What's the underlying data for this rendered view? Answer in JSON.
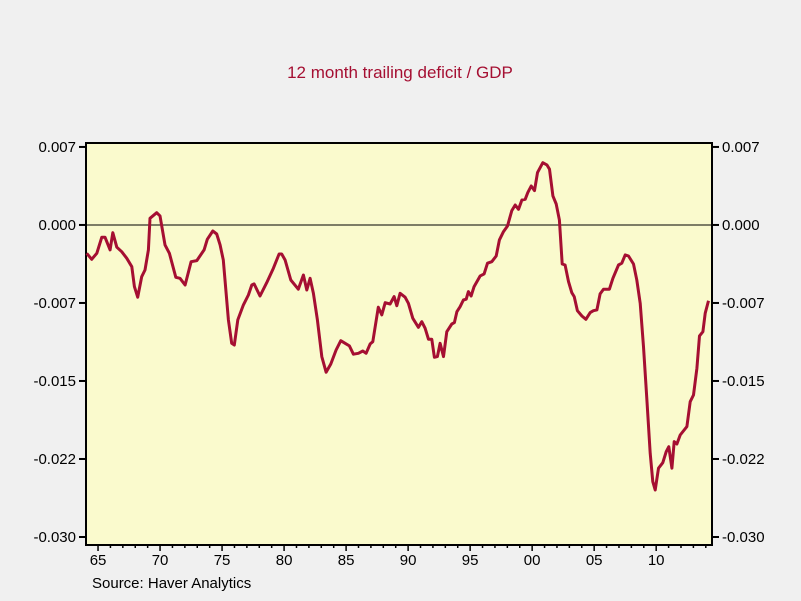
{
  "chart_data": {
    "type": "line",
    "title": "12 month trailing deficit / GDP",
    "source": "Source: Haver Analytics",
    "xlim": [
      1964.03,
      2014.5
    ],
    "ylim": [
      -0.03077,
      0.00788
    ],
    "grid": false,
    "zero_line": true,
    "colors": {
      "line": "#a50f32",
      "title": "#a50f32",
      "plot_bg": "#fafacd",
      "page_bg": "#f0f0f0"
    },
    "y_ticks": [
      {
        "value": 0.0075,
        "label": "0.007"
      },
      {
        "value": 0,
        "label": "0.000"
      },
      {
        "value": -0.0075,
        "label": "-0.007"
      },
      {
        "value": -0.015,
        "label": "-0.015"
      },
      {
        "value": -0.0225,
        "label": "-0.022"
      },
      {
        "value": -0.03,
        "label": "-0.030"
      }
    ],
    "x_ticks": [
      {
        "value": 1965,
        "label": "65"
      },
      {
        "value": 1970,
        "label": "70"
      },
      {
        "value": 1975,
        "label": "75"
      },
      {
        "value": 1980,
        "label": "80"
      },
      {
        "value": 1985,
        "label": "85"
      },
      {
        "value": 1990,
        "label": "90"
      },
      {
        "value": 1995,
        "label": "95"
      },
      {
        "value": 2000,
        "label": "00"
      },
      {
        "value": 2005,
        "label": "05"
      },
      {
        "value": 2010,
        "label": "10"
      }
    ],
    "series": [
      {
        "x": [
          1964.09,
          1964.49,
          1964.9,
          1965.3,
          1965.56,
          1965.97,
          1966.19,
          1966.51,
          1966.91,
          1967.31,
          1967.72,
          1967.93,
          1968.2,
          1968.52,
          1968.79,
          1969.06,
          1969.19,
          1969.73,
          1970.0,
          1970.4,
          1970.75,
          1971.27,
          1971.61,
          1972.02,
          1972.5,
          1972.96,
          1973.55,
          1973.81,
          1974.25,
          1974.57,
          1974.84,
          1975.1,
          1975.51,
          1975.78,
          1975.99,
          1976.27,
          1976.72,
          1977.12,
          1977.4,
          1977.58,
          1978.06,
          1978.6,
          1979.14,
          1979.6,
          1979.81,
          1980.08,
          1980.54,
          1981.15,
          1981.56,
          1981.83,
          1982.1,
          1982.36,
          1982.69,
          1983.04,
          1983.39,
          1983.77,
          1984.19,
          1984.57,
          1984.92,
          1985.27,
          1985.59,
          1985.99,
          1986.35,
          1986.61,
          1986.94,
          1987.15,
          1987.6,
          1987.88,
          1988.15,
          1988.55,
          1988.87,
          1989.09,
          1989.35,
          1989.76,
          1990.02,
          1990.38,
          1990.83,
          1991.1,
          1991.37,
          1991.64,
          1991.91,
          1992.12,
          1992.36,
          1992.58,
          1992.85,
          1993.12,
          1993.52,
          1993.73,
          1993.93,
          1994.19,
          1994.46,
          1994.68,
          1994.86,
          1995.08,
          1995.32,
          1995.81,
          1996.13,
          1996.4,
          1996.75,
          1997.1,
          1997.36,
          1997.69,
          1998.01,
          1998.36,
          1998.63,
          1998.9,
          1999.17,
          1999.44,
          1999.65,
          1999.92,
          2000.19,
          2000.43,
          2000.86,
          2001.19,
          2001.4,
          2001.67,
          2001.94,
          2002.2,
          2002.42,
          2002.66,
          2002.93,
          2003.2,
          2003.39,
          2003.65,
          2004.01,
          2004.33,
          2004.68,
          2004.94,
          2005.22,
          2005.48,
          2005.75,
          2006.23,
          2006.51,
          2006.96,
          2007.23,
          2007.5,
          2007.77,
          2008.17,
          2008.44,
          2008.71,
          2008.98,
          2009.25,
          2009.52,
          2009.73,
          2009.92,
          2010.19,
          2010.53,
          2010.81,
          2011.02,
          2011.27,
          2011.45,
          2011.67,
          2011.94,
          2012.48,
          2012.74,
          2013.01,
          2013.28,
          2013.49,
          2013.77,
          2013.95,
          2014.22
        ],
        "y": [
          -0.00272,
          -0.0033,
          -0.00272,
          -0.00118,
          -0.00118,
          -0.0024,
          -0.00074,
          -0.00214,
          -0.00257,
          -0.0032,
          -0.00401,
          -0.00593,
          -0.00695,
          -0.00497,
          -0.00433,
          -0.0024,
          0.00064,
          0.00118,
          0.00087,
          -0.00192,
          -0.00272,
          -0.00503,
          -0.00513,
          -0.00577,
          -0.00353,
          -0.00343,
          -0.0024,
          -0.00138,
          -0.00058,
          -0.00087,
          -0.00192,
          -0.00337,
          -0.00913,
          -0.01138,
          -0.01154,
          -0.00913,
          -0.00769,
          -0.00673,
          -0.00577,
          -0.00567,
          -0.00683,
          -0.00555,
          -0.00416,
          -0.00279,
          -0.00279,
          -0.00337,
          -0.00529,
          -0.00618,
          -0.00481,
          -0.00625,
          -0.00513,
          -0.00657,
          -0.00913,
          -0.01266,
          -0.01416,
          -0.01337,
          -0.01202,
          -0.01113,
          -0.01138,
          -0.01163,
          -0.01243,
          -0.01234,
          -0.01212,
          -0.01234,
          -0.01144,
          -0.01122,
          -0.00791,
          -0.00865,
          -0.00747,
          -0.0076,
          -0.00689,
          -0.00776,
          -0.00657,
          -0.00695,
          -0.00753,
          -0.00897,
          -0.00984,
          -0.0093,
          -0.00993,
          -0.01099,
          -0.01099,
          -0.01272,
          -0.01266,
          -0.01138,
          -0.01266,
          -0.01026,
          -0.00952,
          -0.00939,
          -0.00834,
          -0.00786,
          -0.00721,
          -0.00714,
          -0.00641,
          -0.00683,
          -0.00593,
          -0.0049,
          -0.00471,
          -0.00368,
          -0.00353,
          -0.00298,
          -0.00144,
          -0.00064,
          -0.0001,
          0.00138,
          0.00192,
          0.00151,
          0.0024,
          0.00247,
          0.00311,
          0.00375,
          0.0033,
          0.00503,
          0.00599,
          0.00577,
          0.00536,
          0.00279,
          0.00202,
          0.00048,
          -0.00375,
          -0.00385,
          -0.00545,
          -0.00651,
          -0.00689,
          -0.00824,
          -0.00875,
          -0.00907,
          -0.00843,
          -0.00824,
          -0.00817,
          -0.00663,
          -0.00618,
          -0.00618,
          -0.00513,
          -0.00385,
          -0.00368,
          -0.00288,
          -0.00298,
          -0.00375,
          -0.00529,
          -0.00753,
          -0.0117,
          -0.01683,
          -0.02195,
          -0.02468,
          -0.02548,
          -0.02339,
          -0.02286,
          -0.0218,
          -0.02132,
          -0.02339,
          -0.02083,
          -0.02106,
          -0.02019,
          -0.01939,
          -0.01699,
          -0.01635,
          -0.01378,
          -0.01067,
          -0.01026,
          -0.00849,
          -0.00728
        ]
      }
    ]
  }
}
